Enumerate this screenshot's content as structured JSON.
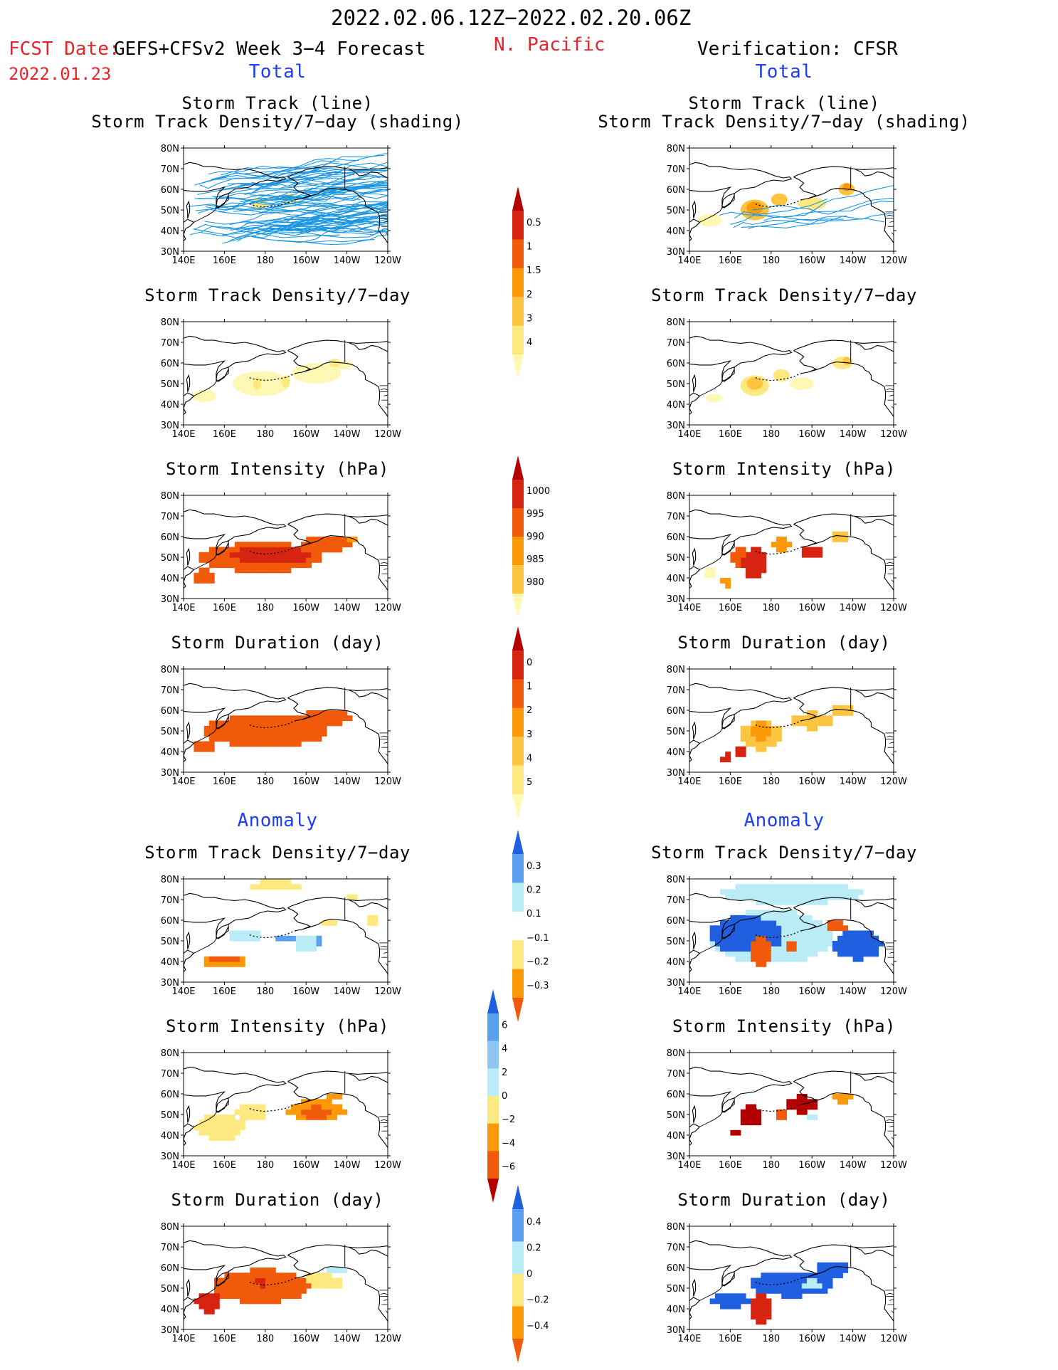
{
  "header": {
    "period": "2022.02.06.12Z−2022.02.20.06Z",
    "region": "N. Pacific",
    "fcst_date_label": "FCST Date:",
    "fcst_date": "2022.01.23",
    "forecast_name": "GEFS+CFSv2 Week 3−4 Forecast",
    "verification": "Verification: CFSR"
  },
  "sections": {
    "total": "Total",
    "anomaly": "Anomaly"
  },
  "axis": {
    "lon_labels": [
      "140E",
      "160E",
      "180",
      "160W",
      "140W",
      "120W"
    ],
    "lat_labels": [
      "80N",
      "70N",
      "60N",
      "50N",
      "40N",
      "30N"
    ]
  },
  "panel_titles": {
    "storm_track_line": "Storm Track (line)",
    "storm_track_density_shading": "Storm Track Density/7−day (shading)",
    "storm_track_density": "Storm Track Density/7−day",
    "storm_intensity": "Storm Intensity (hPa)",
    "storm_duration": "Storm Duration (day)"
  },
  "chart_data": [
    {
      "type": "heatmap",
      "column": "forecast",
      "section": "total",
      "title": "Storm Track Density/7−day (shading)",
      "subtitle": "Storm Track (line)",
      "xlim": [
        "140E",
        "120W"
      ],
      "ylim": [
        "30N",
        "80N"
      ],
      "blobs": [
        {
          "lon": 177,
          "lat": 53,
          "rx": 4,
          "ry": 3,
          "level": 1
        },
        {
          "lon": 192,
          "lat": 55,
          "rx": 4,
          "ry": 3,
          "level": 1
        }
      ],
      "tracks": "dense"
    },
    {
      "type": "heatmap",
      "column": "verification",
      "section": "total",
      "title": "Storm Track Density/7−day (shading)",
      "subtitle": "Storm Track (line)",
      "xlim": [
        "140E",
        "120W"
      ],
      "ylim": [
        "30N",
        "80N"
      ],
      "blobs": [
        {
          "lon": 150,
          "lat": 45,
          "rx": 6,
          "ry": 3,
          "level": 0
        },
        {
          "lon": 172,
          "lat": 50,
          "rx": 7,
          "ry": 5,
          "level": 2
        },
        {
          "lon": 172,
          "lat": 51,
          "rx": 4,
          "ry": 3,
          "level": 3
        },
        {
          "lon": 184,
          "lat": 55,
          "rx": 4,
          "ry": 3,
          "level": 2
        },
        {
          "lon": 200,
          "lat": 53,
          "rx": 7,
          "ry": 3,
          "level": 1
        },
        {
          "lon": 217,
          "lat": 60,
          "rx": 4,
          "ry": 3,
          "level": 2
        },
        {
          "lon": 217,
          "lat": 61,
          "rx": 2,
          "ry": 2,
          "level": 3
        }
      ],
      "tracks": "sparse"
    },
    {
      "type": "heatmap",
      "column": "forecast",
      "section": "total",
      "title": "Storm Track Density/7−day",
      "xlim": [
        "140E",
        "120W"
      ],
      "ylim": [
        "30N",
        "80N"
      ],
      "blobs": [
        {
          "lon": 150,
          "lat": 44,
          "rx": 6,
          "ry": 3,
          "level": 0
        },
        {
          "lon": 178,
          "lat": 50,
          "rx": 14,
          "ry": 6,
          "level": 0
        },
        {
          "lon": 205,
          "lat": 55,
          "rx": 12,
          "ry": 5,
          "level": 0
        },
        {
          "lon": 218,
          "lat": 59,
          "rx": 5,
          "ry": 2,
          "level": 0
        },
        {
          "lon": 176,
          "lat": 50,
          "rx": 2,
          "ry": 3,
          "level": 1
        },
        {
          "lon": 190,
          "lat": 51,
          "rx": 2,
          "ry": 3,
          "level": 1
        },
        {
          "lon": 214,
          "lat": 60,
          "rx": 3,
          "ry": 2,
          "level": 1
        }
      ]
    },
    {
      "type": "heatmap",
      "column": "verification",
      "section": "total",
      "title": "Storm Track Density/7−day",
      "xlim": [
        "140E",
        "120W"
      ],
      "ylim": [
        "30N",
        "80N"
      ],
      "blobs": [
        {
          "lon": 152,
          "lat": 43,
          "rx": 4,
          "ry": 2,
          "level": 0
        },
        {
          "lon": 172,
          "lat": 49,
          "rx": 7,
          "ry": 5,
          "level": 1
        },
        {
          "lon": 172,
          "lat": 50,
          "rx": 4,
          "ry": 3,
          "level": 2
        },
        {
          "lon": 185,
          "lat": 54,
          "rx": 4,
          "ry": 3,
          "level": 1
        },
        {
          "lon": 195,
          "lat": 50,
          "rx": 6,
          "ry": 3,
          "level": 0
        },
        {
          "lon": 215,
          "lat": 60,
          "rx": 5,
          "ry": 3,
          "level": 1
        },
        {
          "lon": 217,
          "lat": 61,
          "rx": 2,
          "ry": 2,
          "level": 2
        }
      ]
    },
    {
      "type": "heatmap",
      "column": "forecast",
      "section": "total",
      "title": "Storm Intensity (hPa)",
      "xlim": [
        "140E",
        "120W"
      ],
      "ylim": [
        "30N",
        "80N"
      ],
      "blobs": [
        {
          "lon": 178,
          "lat": 50,
          "rx": 30,
          "ry": 7,
          "level": 3
        },
        {
          "lon": 210,
          "lat": 57,
          "rx": 12,
          "ry": 4,
          "level": 3
        },
        {
          "lon": 183,
          "lat": 51,
          "rx": 20,
          "ry": 4,
          "level": 4
        },
        {
          "lon": 150,
          "lat": 41,
          "rx": 6,
          "ry": 3,
          "level": 3
        },
        {
          "lon": 222,
          "lat": 59,
          "rx": 3,
          "ry": 2,
          "level": 2
        }
      ]
    },
    {
      "type": "heatmap",
      "column": "verification",
      "section": "total",
      "title": "Storm Intensity (hPa)",
      "xlim": [
        "140E",
        "120W"
      ],
      "ylim": [
        "30N",
        "80N"
      ],
      "blobs": [
        {
          "lon": 172,
          "lat": 47,
          "rx": 6,
          "ry": 8,
          "level": 4
        },
        {
          "lon": 165,
          "lat": 50,
          "rx": 4,
          "ry": 4,
          "level": 3
        },
        {
          "lon": 185,
          "lat": 56,
          "rx": 4,
          "ry": 3,
          "level": 2
        },
        {
          "lon": 200,
          "lat": 53,
          "rx": 5,
          "ry": 3,
          "level": 4
        },
        {
          "lon": 213,
          "lat": 60,
          "rx": 4,
          "ry": 3,
          "level": 1
        },
        {
          "lon": 150,
          "lat": 42,
          "rx": 3,
          "ry": 3,
          "level": 0
        },
        {
          "lon": 158,
          "lat": 38,
          "rx": 2,
          "ry": 3,
          "level": 2
        }
      ]
    },
    {
      "type": "heatmap",
      "column": "forecast",
      "section": "total",
      "title": "Storm Duration (day)",
      "xlim": [
        "140E",
        "120W"
      ],
      "ylim": [
        "30N",
        "80N"
      ],
      "blobs": [
        {
          "lon": 180,
          "lat": 50,
          "rx": 30,
          "ry": 8,
          "level": 3
        },
        {
          "lon": 210,
          "lat": 57,
          "rx": 12,
          "ry": 4,
          "level": 3
        },
        {
          "lon": 150,
          "lat": 42,
          "rx": 6,
          "ry": 3,
          "level": 3
        }
      ]
    },
    {
      "type": "heatmap",
      "column": "verification",
      "section": "total",
      "title": "Storm Duration (day)",
      "xlim": [
        "140E",
        "120W"
      ],
      "ylim": [
        "30N",
        "80N"
      ],
      "blobs": [
        {
          "lon": 175,
          "lat": 48,
          "rx": 10,
          "ry": 7,
          "level": 1
        },
        {
          "lon": 175,
          "lat": 50,
          "rx": 5,
          "ry": 4,
          "level": 2
        },
        {
          "lon": 200,
          "lat": 55,
          "rx": 10,
          "ry": 4,
          "level": 1
        },
        {
          "lon": 215,
          "lat": 60,
          "rx": 5,
          "ry": 3,
          "level": 1
        },
        {
          "lon": 165,
          "lat": 40,
          "rx": 2,
          "ry": 2,
          "level": 4
        },
        {
          "lon": 158,
          "lat": 37,
          "rx": 2,
          "ry": 2,
          "level": 4
        }
      ]
    },
    {
      "type": "heatmap",
      "column": "forecast",
      "section": "anomaly",
      "title": "Storm Track Density/7−day",
      "xlim": [
        "140E",
        "120W"
      ],
      "ylim": [
        "30N",
        "80N"
      ],
      "blobs": [
        {
          "lon": 160,
          "lat": 40,
          "rx": 10,
          "ry": 3,
          "level": 4
        },
        {
          "lon": 160,
          "lat": 41,
          "rx": 7,
          "ry": 2,
          "level": 5
        },
        {
          "lon": 185,
          "lat": 77,
          "rx": 14,
          "ry": 2,
          "level": 3
        },
        {
          "lon": 222,
          "lat": 71,
          "rx": 3,
          "ry": 2,
          "level": 3
        },
        {
          "lon": 170,
          "lat": 52,
          "rx": 8,
          "ry": 3,
          "level": 2
        },
        {
          "lon": 190,
          "lat": 51,
          "rx": 4,
          "ry": 2,
          "level": 1
        },
        {
          "lon": 200,
          "lat": 49,
          "rx": 6,
          "ry": 4,
          "level": 2
        },
        {
          "lon": 204,
          "lat": 50,
          "rx": 3,
          "ry": 3,
          "level": 1
        },
        {
          "lon": 212,
          "lat": 59,
          "rx": 4,
          "ry": 2,
          "level": 3
        },
        {
          "lon": 232,
          "lat": 60,
          "rx": 3,
          "ry": 2,
          "level": 3
        }
      ]
    },
    {
      "type": "heatmap",
      "column": "verification",
      "section": "anomaly",
      "title": "Storm Track Density/7−day",
      "xlim": [
        "140E",
        "120W"
      ],
      "ylim": [
        "30N",
        "80N"
      ],
      "blobs": [
        {
          "lon": 190,
          "lat": 73,
          "rx": 35,
          "ry": 5,
          "level": 2
        },
        {
          "lon": 180,
          "lat": 52,
          "rx": 30,
          "ry": 13,
          "level": 2
        },
        {
          "lon": 168,
          "lat": 53,
          "rx": 18,
          "ry": 9,
          "level": 0
        },
        {
          "lon": 222,
          "lat": 48,
          "rx": 12,
          "ry": 7,
          "level": 0
        },
        {
          "lon": 175,
          "lat": 45,
          "rx": 6,
          "ry": 8,
          "level": 5
        },
        {
          "lon": 175,
          "lat": 46,
          "rx": 3,
          "ry": 4,
          "level": 4
        },
        {
          "lon": 212,
          "lat": 57,
          "rx": 5,
          "ry": 3,
          "level": 5
        },
        {
          "lon": 190,
          "lat": 48,
          "rx": 3,
          "ry": 3,
          "level": 5
        }
      ]
    },
    {
      "type": "heatmap",
      "column": "forecast",
      "section": "anomaly",
      "title": "Storm Intensity (hPa)",
      "xlim": [
        "140E",
        "120W"
      ],
      "ylim": [
        "30N",
        "80N"
      ],
      "blobs": [
        {
          "lon": 158,
          "lat": 44,
          "rx": 12,
          "ry": 6,
          "level": 2
        },
        {
          "lon": 158,
          "lat": 42,
          "rx": 6,
          "ry": 3,
          "level": 1
        },
        {
          "lon": 173,
          "lat": 51,
          "rx": 8,
          "ry": 4,
          "level": 2
        },
        {
          "lon": 205,
          "lat": 52,
          "rx": 14,
          "ry": 5,
          "level": 3
        },
        {
          "lon": 205,
          "lat": 51,
          "rx": 7,
          "ry": 3,
          "level": 4
        },
        {
          "lon": 214,
          "lat": 59,
          "rx": 4,
          "ry": 2,
          "level": 3
        }
      ]
    },
    {
      "type": "heatmap",
      "column": "verification",
      "section": "anomaly",
      "title": "Storm Intensity (hPa)",
      "xlim": [
        "140E",
        "120W"
      ],
      "ylim": [
        "30N",
        "80N"
      ],
      "blobs": [
        {
          "lon": 170,
          "lat": 49,
          "rx": 6,
          "ry": 5,
          "level": 5
        },
        {
          "lon": 195,
          "lat": 55,
          "rx": 8,
          "ry": 4,
          "level": 5
        },
        {
          "lon": 162,
          "lat": 41,
          "rx": 3,
          "ry": 2,
          "level": 5
        },
        {
          "lon": 185,
          "lat": 50,
          "rx": 4,
          "ry": 3,
          "level": 4
        },
        {
          "lon": 200,
          "lat": 49,
          "rx": 3,
          "ry": 2,
          "level": 1
        },
        {
          "lon": 215,
          "lat": 58,
          "rx": 4,
          "ry": 3,
          "level": 3
        },
        {
          "lon": 162,
          "lat": 37,
          "rx": 1,
          "ry": 1,
          "level": 0
        }
      ]
    },
    {
      "type": "heatmap",
      "column": "forecast",
      "section": "anomaly",
      "title": "Storm Duration (day)",
      "xlim": [
        "140E",
        "120W"
      ],
      "ylim": [
        "30N",
        "80N"
      ],
      "blobs": [
        {
          "lon": 178,
          "lat": 51,
          "rx": 24,
          "ry": 8,
          "level": 4
        },
        {
          "lon": 185,
          "lat": 53,
          "rx": 10,
          "ry": 5,
          "level": 3
        },
        {
          "lon": 152,
          "lat": 43,
          "rx": 6,
          "ry": 5,
          "level": 5
        },
        {
          "lon": 206,
          "lat": 53,
          "rx": 12,
          "ry": 4,
          "level": 2
        },
        {
          "lon": 215,
          "lat": 59,
          "rx": 5,
          "ry": 2,
          "level": 1
        },
        {
          "lon": 178,
          "lat": 53,
          "rx": 3,
          "ry": 2,
          "level": 5
        }
      ]
    },
    {
      "type": "heatmap",
      "column": "verification",
      "section": "anomaly",
      "title": "Storm Duration (day)",
      "xlim": [
        "140E",
        "120W"
      ],
      "ylim": [
        "30N",
        "80N"
      ],
      "blobs": [
        {
          "lon": 160,
          "lat": 44,
          "rx": 10,
          "ry": 3,
          "level": 0
        },
        {
          "lon": 190,
          "lat": 52,
          "rx": 20,
          "ry": 6,
          "level": 0
        },
        {
          "lon": 210,
          "lat": 59,
          "rx": 8,
          "ry": 4,
          "level": 0
        },
        {
          "lon": 175,
          "lat": 40,
          "rx": 5,
          "ry": 7,
          "level": 5
        },
        {
          "lon": 200,
          "lat": 52,
          "rx": 5,
          "ry": 2,
          "level": 1
        }
      ]
    }
  ],
  "colorbars": [
    {
      "name": "total-track-density",
      "levels": [
        "0.5",
        "1",
        "1.5",
        "2",
        "3",
        "4"
      ],
      "colors": [
        "#fff8b4",
        "#fde97f",
        "#fdc442",
        "#fb9908",
        "#f15a0a",
        "#d72410",
        "#b30000"
      ]
    },
    {
      "name": "total-intensity",
      "levels": [
        "1000",
        "995",
        "990",
        "985",
        "980"
      ],
      "colors": [
        "#fff8b4",
        "#fdc442",
        "#fb9908",
        "#f15a0a",
        "#d72410",
        "#b30000"
      ]
    },
    {
      "name": "total-duration",
      "levels": [
        "0",
        "1",
        "2",
        "3",
        "4",
        "5"
      ],
      "colors": [
        "#fff8b4",
        "#fde97f",
        "#fdc442",
        "#fb9908",
        "#f15a0a",
        "#d72410",
        "#b30000"
      ]
    },
    {
      "name": "anomaly-track-density",
      "levels": [
        "0.3",
        "0.2",
        "0.1",
        "−0.1",
        "−0.2",
        "−0.3"
      ],
      "colors": [
        "#f15a0a",
        "#fb9908",
        "#fde97f",
        "#ffffff",
        "#b9ecf7",
        "#5aa0f0",
        "#1f5fe0"
      ]
    },
    {
      "name": "anomaly-intensity",
      "levels": [
        "6",
        "4",
        "2",
        "0",
        "−2",
        "−4",
        "−6"
      ],
      "colors": [
        "#b30000",
        "#f15a0a",
        "#fb9908",
        "#fde97f",
        "#b9ecf7",
        "#8ec6f3",
        "#5aa0f0",
        "#1f5fe0"
      ]
    },
    {
      "name": "anomaly-duration",
      "levels": [
        "0.4",
        "0.2",
        "0",
        "−0.2",
        "−0.4"
      ],
      "colors": [
        "#f15a0a",
        "#fb9908",
        "#fde97f",
        "#b9ecf7",
        "#5aa0f0",
        "#1f5fe0"
      ]
    }
  ],
  "palettes": {
    "density": [
      "#fff8b4",
      "#fde97f",
      "#fdc442",
      "#fb9908",
      "#f15a0a",
      "#d72410"
    ],
    "intensity": [
      "#fff8b4",
      "#fdc442",
      "#fb9908",
      "#f15a0a",
      "#d72410"
    ],
    "duration": [
      "#fde97f",
      "#fdc442",
      "#fb9908",
      "#f15a0a",
      "#d72410"
    ],
    "anom_density": [
      "#1f5fe0",
      "#5aa0f0",
      "#b9ecf7",
      "#fde97f",
      "#fb9908",
      "#f15a0a"
    ],
    "anom_intensity": [
      "#5aa0f0",
      "#b9ecf7",
      "#fde97f",
      "#fb9908",
      "#f15a0a",
      "#b30000"
    ],
    "anom_duration": [
      "#1f5fe0",
      "#b9ecf7",
      "#fde97f",
      "#fb9908",
      "#f15a0a",
      "#d72410"
    ],
    "track_line": "#1b96e0"
  }
}
